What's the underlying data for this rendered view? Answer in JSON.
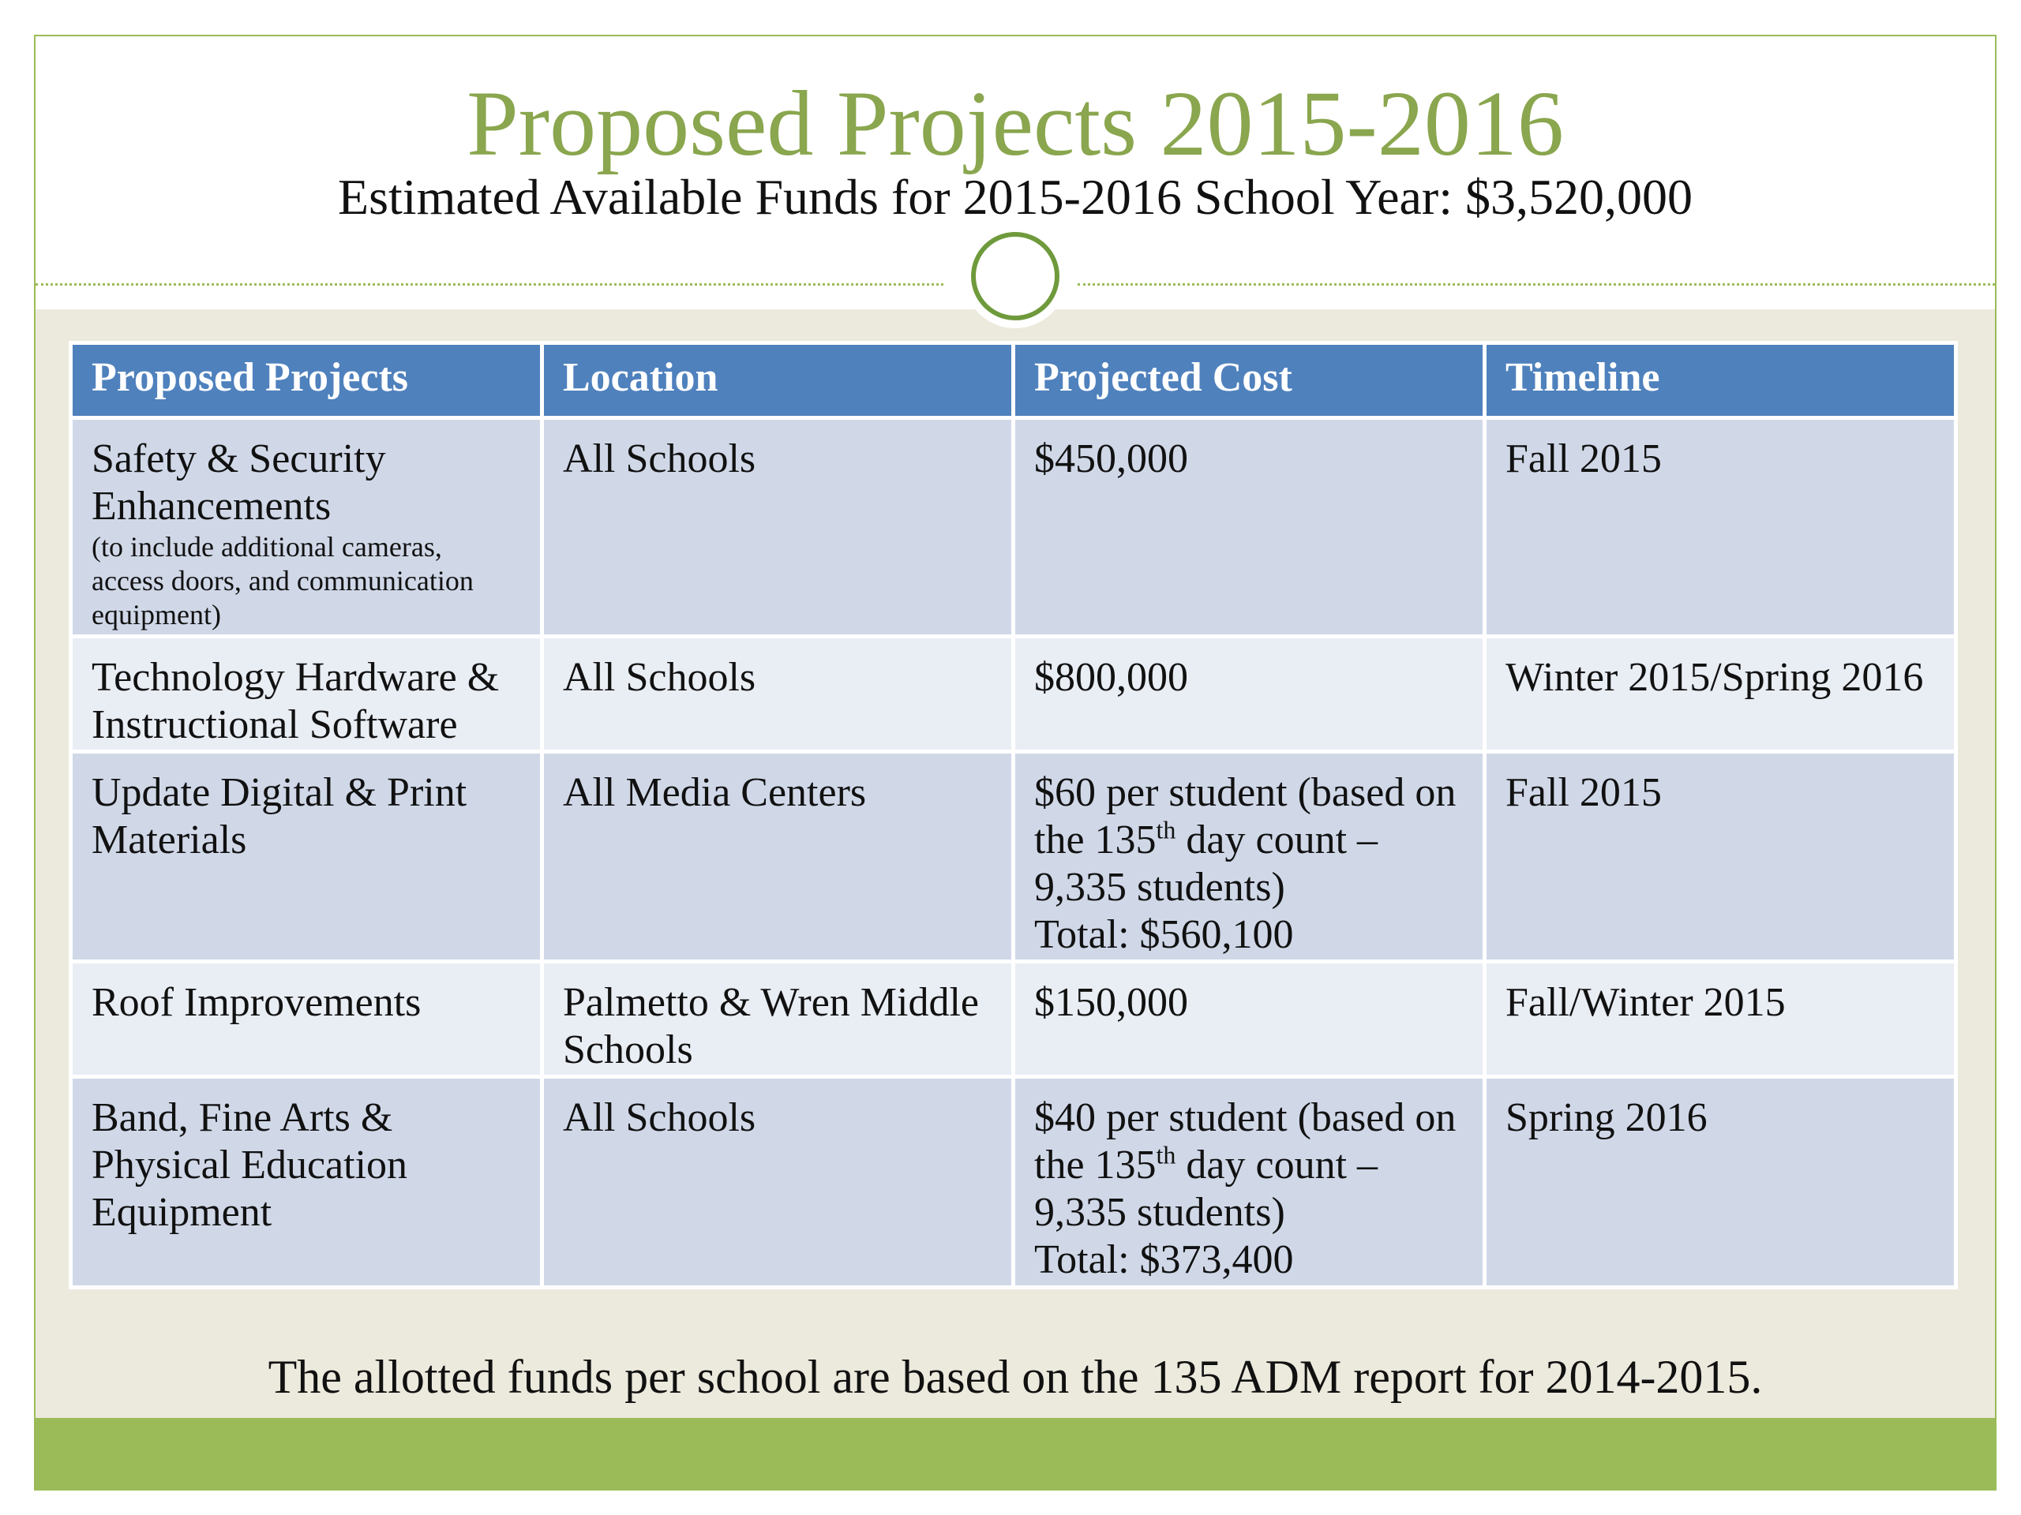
{
  "header": {
    "title": "Proposed Projects 2015-2016",
    "subtitle": "Estimated Available Funds for 2015-2016 School Year: $3,520,000"
  },
  "table": {
    "columns": [
      "Proposed Projects",
      "Location",
      "Projected Cost",
      "Timeline"
    ],
    "rows": [
      [
        {
          "name": "Safety & Security Enhancements",
          "note": "(to include additional cameras, access doors, and communication equipment)"
        },
        "All Schools",
        "$450,000",
        "Fall 2015"
      ],
      [
        "Technology Hardware & Instructional Software",
        "All Schools",
        "$800,000",
        "Winter 2015/Spring 2016"
      ],
      [
        "Update Digital & Print Materials",
        "All Media Centers",
        {
          "text": "$60 per student (based on the 135",
          "sup": "th",
          "rest": "day count – 9,335 students)",
          "total": "Total: $560,100"
        },
        "Fall 2015"
      ],
      [
        "Roof Improvements",
        "Palmetto & Wren Middle Schools",
        "$150,000",
        "Fall/Winter 2015"
      ],
      [
        "Band, Fine Arts & Physical Education Equipment",
        "All Schools",
        {
          "text": "$40 per student (based on the 135",
          "sup": "th",
          "rest": "day count – 9,335 students)",
          "total": "Total: $373,400"
        },
        "Spring 2016"
      ]
    ]
  },
  "footer": {
    "note": "The allotted funds per school are based on the 135 ADM report for 2014-2015."
  }
}
